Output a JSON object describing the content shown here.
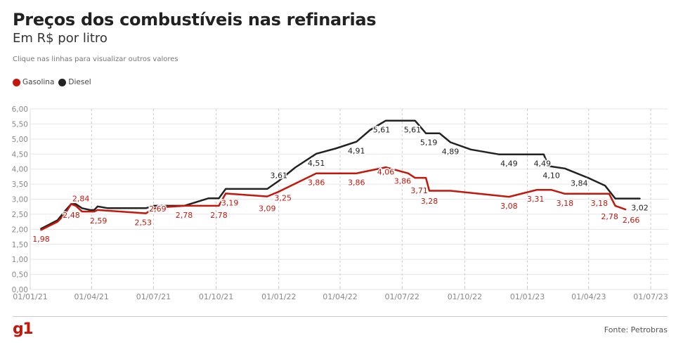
{
  "header": {
    "title": "Preços dos combustíveis nas refinarias",
    "subtitle": "Em R$ por litro",
    "hint": "Clique nas linhas para visualizar outros valores"
  },
  "legend": [
    {
      "label": "Gasolina",
      "color": "#c4170c"
    },
    {
      "label": "Diesel",
      "color": "#222222"
    }
  ],
  "footer": {
    "logo": "g1",
    "source": "Fonte: Petrobras"
  },
  "chart_data": {
    "type": "line",
    "title": "Preços dos combustíveis nas refinarias",
    "subtitle": "Em R$ por litro",
    "xlabel": "",
    "ylabel": "R$ por litro",
    "ylim": [
      0,
      6
    ],
    "xlim": [
      "2021-01-01",
      "2023-07-01"
    ],
    "grid": true,
    "legend_position": "top-left",
    "y_ticks": [
      "0,00",
      "0,50",
      "1,00",
      "1,50",
      "2,00",
      "2,50",
      "3,00",
      "3,50",
      "4,00",
      "4,50",
      "5,00",
      "5,50",
      "6,00"
    ],
    "y_tick_values": [
      0,
      0.5,
      1,
      1.5,
      2,
      2.5,
      3,
      3.5,
      4,
      4.5,
      5,
      5.5,
      6
    ],
    "x_ticks": [
      {
        "label": "01/01/21",
        "date": "2021-01-01"
      },
      {
        "label": "01/04/21",
        "date": "2021-04-01"
      },
      {
        "label": "01/07/21",
        "date": "2021-07-01"
      },
      {
        "label": "01/10/21",
        "date": "2021-10-01"
      },
      {
        "label": "01/01/22",
        "date": "2022-01-01"
      },
      {
        "label": "01/04/22",
        "date": "2022-04-01"
      },
      {
        "label": "01/07/22",
        "date": "2022-07-01"
      },
      {
        "label": "01/10/22",
        "date": "2022-10-01"
      },
      {
        "label": "01/01/23",
        "date": "2023-01-01"
      },
      {
        "label": "01/04/23",
        "date": "2023-04-01"
      },
      {
        "label": "01/07/23",
        "date": "2023-07-01"
      }
    ],
    "series": [
      {
        "name": "Diesel",
        "color": "#222222",
        "points": [
          {
            "date": "2021-01-17",
            "value": 2.02
          },
          {
            "date": "2021-02-10",
            "value": 2.3
          },
          {
            "date": "2021-02-20",
            "value": 2.58
          },
          {
            "date": "2021-03-02",
            "value": 2.84
          },
          {
            "date": "2021-03-09",
            "value": 2.84
          },
          {
            "date": "2021-03-18",
            "value": 2.7
          },
          {
            "date": "2021-03-30",
            "value": 2.64
          },
          {
            "date": "2021-04-05",
            "value": 2.64
          },
          {
            "date": "2021-04-10",
            "value": 2.76
          },
          {
            "date": "2021-04-25",
            "value": 2.7
          },
          {
            "date": "2021-06-20",
            "value": 2.7
          },
          {
            "date": "2021-07-01",
            "value": 2.78
          },
          {
            "date": "2021-07-20",
            "value": 2.78
          },
          {
            "date": "2021-08-15",
            "value": 2.78
          },
          {
            "date": "2021-09-20",
            "value": 3.03
          },
          {
            "date": "2021-10-05",
            "value": 3.03
          },
          {
            "date": "2021-10-15",
            "value": 3.34
          },
          {
            "date": "2021-12-15",
            "value": 3.34
          },
          {
            "date": "2022-01-01",
            "value": 3.61
          },
          {
            "date": "2022-01-25",
            "value": 4.05
          },
          {
            "date": "2022-02-25",
            "value": 4.51
          },
          {
            "date": "2022-03-25",
            "value": 4.68
          },
          {
            "date": "2022-04-25",
            "value": 4.91
          },
          {
            "date": "2022-05-15",
            "value": 5.3
          },
          {
            "date": "2022-06-07",
            "value": 5.61
          },
          {
            "date": "2022-07-10",
            "value": 5.61
          },
          {
            "date": "2022-07-20",
            "value": 5.61
          },
          {
            "date": "2022-08-05",
            "value": 5.19
          },
          {
            "date": "2022-08-25",
            "value": 5.19
          },
          {
            "date": "2022-09-10",
            "value": 4.89
          },
          {
            "date": "2022-10-10",
            "value": 4.65
          },
          {
            "date": "2022-11-20",
            "value": 4.49
          },
          {
            "date": "2022-12-25",
            "value": 4.49
          },
          {
            "date": "2023-01-25",
            "value": 4.49
          },
          {
            "date": "2023-02-01",
            "value": 4.1
          },
          {
            "date": "2023-02-25",
            "value": 4.02
          },
          {
            "date": "2023-04-01",
            "value": 3.7
          },
          {
            "date": "2023-04-25",
            "value": 3.45
          },
          {
            "date": "2023-05-10",
            "value": 3.02
          },
          {
            "date": "2023-06-15",
            "value": 3.02
          }
        ],
        "labels": [
          {
            "date": "2022-01-01",
            "value": 3.61,
            "text": "3,61"
          },
          {
            "date": "2022-02-25",
            "value": 4.51,
            "text": "4,51"
          },
          {
            "date": "2022-04-25",
            "value": 4.91,
            "text": "4,91"
          },
          {
            "date": "2022-06-07",
            "value": 5.61,
            "text": "5,61"
          },
          {
            "date": "2022-07-10",
            "value": 5.61,
            "text": "5,61"
          },
          {
            "date": "2022-08-05",
            "value": 5.19,
            "text": "5,19"
          },
          {
            "date": "2022-09-10",
            "value": 4.89,
            "text": "4,89"
          },
          {
            "date": "2022-12-05",
            "value": 4.49,
            "text": "4,49"
          },
          {
            "date": "2023-01-25",
            "value": 4.49,
            "text": "4,49"
          },
          {
            "date": "2023-02-01",
            "value": 4.1,
            "text": "4,10"
          },
          {
            "date": "2023-03-18",
            "value": 3.84,
            "text": "3,84"
          },
          {
            "date": "2023-06-15",
            "value": 3.02,
            "text": "3,02"
          }
        ]
      },
      {
        "name": "Gasolina",
        "color": "#c4170c",
        "points": [
          {
            "date": "2021-01-17",
            "value": 1.98
          },
          {
            "date": "2021-02-10",
            "value": 2.25
          },
          {
            "date": "2021-02-20",
            "value": 2.48
          },
          {
            "date": "2021-03-02",
            "value": 2.84
          },
          {
            "date": "2021-03-09",
            "value": 2.78
          },
          {
            "date": "2021-03-18",
            "value": 2.59
          },
          {
            "date": "2021-04-05",
            "value": 2.59
          },
          {
            "date": "2021-04-10",
            "value": 2.64
          },
          {
            "date": "2021-06-20",
            "value": 2.53
          },
          {
            "date": "2021-07-01",
            "value": 2.69
          },
          {
            "date": "2021-07-20",
            "value": 2.74
          },
          {
            "date": "2021-08-15",
            "value": 2.78
          },
          {
            "date": "2021-10-05",
            "value": 2.78
          },
          {
            "date": "2021-10-15",
            "value": 3.19
          },
          {
            "date": "2021-12-15",
            "value": 3.09
          },
          {
            "date": "2022-01-01",
            "value": 3.25
          },
          {
            "date": "2022-02-25",
            "value": 3.86
          },
          {
            "date": "2022-04-25",
            "value": 3.86
          },
          {
            "date": "2022-06-07",
            "value": 4.06
          },
          {
            "date": "2022-07-10",
            "value": 3.86
          },
          {
            "date": "2022-07-20",
            "value": 3.71
          },
          {
            "date": "2022-08-05",
            "value": 3.71
          },
          {
            "date": "2022-08-10",
            "value": 3.28
          },
          {
            "date": "2022-09-10",
            "value": 3.28
          },
          {
            "date": "2022-12-05",
            "value": 3.08
          },
          {
            "date": "2023-01-15",
            "value": 3.31
          },
          {
            "date": "2023-02-05",
            "value": 3.31
          },
          {
            "date": "2023-02-25",
            "value": 3.18
          },
          {
            "date": "2023-05-01",
            "value": 3.18
          },
          {
            "date": "2023-05-10",
            "value": 2.78
          },
          {
            "date": "2023-05-25",
            "value": 2.66
          }
        ],
        "labels": [
          {
            "date": "2021-01-17",
            "value": 1.98,
            "text": "1,98"
          },
          {
            "date": "2021-02-20",
            "value": 2.48,
            "text": "2,48"
          },
          {
            "date": "2021-03-02",
            "value": 2.84,
            "text": "2,84"
          },
          {
            "date": "2021-04-05",
            "value": 2.59,
            "text": "2,59"
          },
          {
            "date": "2021-06-20",
            "value": 2.53,
            "text": "2,53"
          },
          {
            "date": "2021-07-01",
            "value": 2.69,
            "text": "2,69"
          },
          {
            "date": "2021-08-15",
            "value": 2.78,
            "text": "2,78"
          },
          {
            "date": "2021-10-05",
            "value": 2.78,
            "text": "2,78"
          },
          {
            "date": "2021-10-15",
            "value": 3.19,
            "text": "3,19"
          },
          {
            "date": "2021-12-15",
            "value": 3.09,
            "text": "3,09"
          },
          {
            "date": "2022-01-01",
            "value": 3.25,
            "text": "3,25"
          },
          {
            "date": "2022-02-25",
            "value": 3.86,
            "text": "3,86"
          },
          {
            "date": "2022-04-25",
            "value": 3.86,
            "text": "3,86"
          },
          {
            "date": "2022-06-07",
            "value": 4.06,
            "text": "4,06"
          },
          {
            "date": "2022-07-10",
            "value": 3.86,
            "text": "3,86"
          },
          {
            "date": "2022-07-20",
            "value": 3.71,
            "text": "3,71"
          },
          {
            "date": "2022-08-10",
            "value": 3.28,
            "text": "3,28"
          },
          {
            "date": "2022-12-05",
            "value": 3.08,
            "text": "3,08"
          },
          {
            "date": "2023-01-15",
            "value": 3.31,
            "text": "3,31"
          },
          {
            "date": "2023-02-25",
            "value": 3.18,
            "text": "3,18"
          },
          {
            "date": "2023-05-01",
            "value": 3.18,
            "text": "3,18"
          },
          {
            "date": "2023-05-10",
            "value": 2.78,
            "text": "2,78"
          },
          {
            "date": "2023-05-25",
            "value": 2.66,
            "text": "2,66"
          }
        ]
      }
    ]
  }
}
